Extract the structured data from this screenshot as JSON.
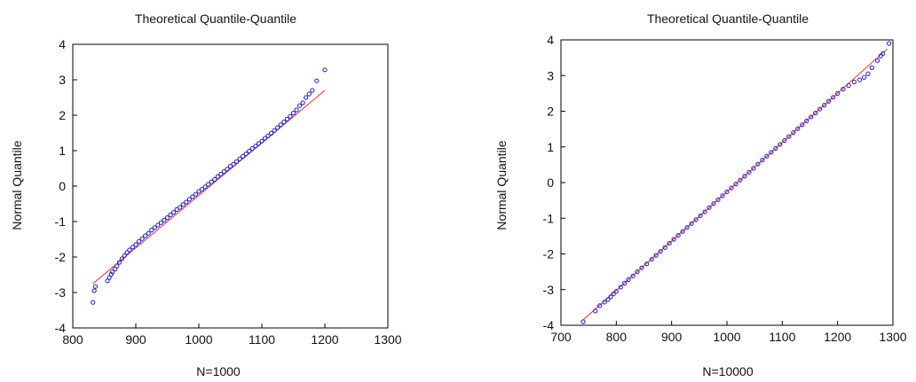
{
  "chart_data": [
    {
      "type": "scatter",
      "title": "Theoretical Quantile-Quantile",
      "xlabel": "N=1000",
      "ylabel": "Normal Quantile",
      "xlim": [
        800,
        1300
      ],
      "ylim": [
        -4,
        4
      ],
      "x_ticks": [
        800,
        900,
        1000,
        1100,
        1200,
        1300
      ],
      "y_ticks": [
        -4,
        -3,
        -2,
        -1,
        0,
        1,
        2,
        3,
        4
      ],
      "grid": false,
      "colors": {
        "points": "#1a1acc",
        "reference_line": "#ff2a2a",
        "axes": "#000000"
      },
      "reference_line": {
        "x": [
          832,
          1200
        ],
        "y": [
          -2.75,
          2.7
        ]
      },
      "series": [
        {
          "x": [
            832,
            834,
            836,
            855,
            858,
            861,
            863,
            867,
            870,
            874,
            878,
            882,
            886,
            890,
            895,
            900,
            905,
            910,
            915,
            920,
            925,
            930,
            935,
            940,
            945,
            950,
            955,
            960,
            965,
            970,
            975,
            980,
            985,
            990,
            995,
            1000,
            1005,
            1010,
            1015,
            1020,
            1025,
            1030,
            1035,
            1040,
            1045,
            1050,
            1055,
            1060,
            1065,
            1070,
            1075,
            1080,
            1085,
            1090,
            1095,
            1100,
            1105,
            1110,
            1115,
            1120,
            1125,
            1130,
            1135,
            1140,
            1145,
            1150,
            1155,
            1160,
            1165,
            1170,
            1175,
            1180,
            1187,
            1200
          ],
          "y": [
            -3.28,
            -2.95,
            -2.83,
            -2.67,
            -2.58,
            -2.49,
            -2.42,
            -2.34,
            -2.25,
            -2.15,
            -2.05,
            -1.96,
            -1.87,
            -1.8,
            -1.72,
            -1.65,
            -1.56,
            -1.48,
            -1.4,
            -1.33,
            -1.24,
            -1.17,
            -1.1,
            -1.03,
            -0.96,
            -0.89,
            -0.81,
            -0.74,
            -0.66,
            -0.6,
            -0.52,
            -0.45,
            -0.37,
            -0.3,
            -0.23,
            -0.15,
            -0.09,
            -0.02,
            0.05,
            0.12,
            0.19,
            0.27,
            0.34,
            0.41,
            0.48,
            0.56,
            0.62,
            0.69,
            0.77,
            0.84,
            0.91,
            0.99,
            1.06,
            1.13,
            1.2,
            1.27,
            1.35,
            1.42,
            1.49,
            1.57,
            1.65,
            1.73,
            1.81,
            1.89,
            1.97,
            2.06,
            2.15,
            2.27,
            2.35,
            2.5,
            2.6,
            2.7,
            2.97,
            3.28
          ]
        }
      ]
    },
    {
      "type": "scatter",
      "title": "Theoretical Quantile-Quantile",
      "xlabel": "N=10000",
      "ylabel": "Normal Quantile",
      "xlim": [
        700,
        1300
      ],
      "ylim": [
        -4,
        4
      ],
      "x_ticks": [
        700,
        800,
        900,
        1000,
        1100,
        1200,
        1300
      ],
      "y_ticks": [
        -4,
        -3,
        -2,
        -1,
        0,
        1,
        2,
        3,
        4
      ],
      "grid": false,
      "colors": {
        "points": "#1a1acc",
        "reference_line": "#ff2a2a",
        "axes": "#000000"
      },
      "reference_line": {
        "x": [
          740,
          1290
        ],
        "y": [
          -3.85,
          3.75
        ]
      },
      "series": [
        {
          "x": [
            740,
            762,
            770,
            779,
            785,
            790,
            795,
            800,
            808,
            815,
            822,
            830,
            838,
            846,
            855,
            864,
            872,
            880,
            888,
            896,
            904,
            912,
            920,
            928,
            936,
            944,
            952,
            960,
            968,
            976,
            984,
            992,
            1000,
            1008,
            1016,
            1024,
            1032,
            1040,
            1048,
            1056,
            1064,
            1072,
            1080,
            1088,
            1096,
            1104,
            1112,
            1120,
            1128,
            1136,
            1144,
            1152,
            1160,
            1168,
            1176,
            1184,
            1192,
            1200,
            1210,
            1220,
            1230,
            1240,
            1248,
            1255,
            1262,
            1272,
            1278,
            1282,
            1293
          ],
          "y": [
            -3.9,
            -3.6,
            -3.45,
            -3.35,
            -3.28,
            -3.2,
            -3.12,
            -3.05,
            -2.93,
            -2.82,
            -2.72,
            -2.62,
            -2.5,
            -2.39,
            -2.28,
            -2.15,
            -2.04,
            -1.93,
            -1.82,
            -1.7,
            -1.59,
            -1.48,
            -1.37,
            -1.26,
            -1.15,
            -1.04,
            -0.93,
            -0.82,
            -0.7,
            -0.59,
            -0.48,
            -0.37,
            -0.26,
            -0.15,
            -0.04,
            0.07,
            0.18,
            0.29,
            0.4,
            0.52,
            0.63,
            0.74,
            0.85,
            0.96,
            1.07,
            1.18,
            1.29,
            1.4,
            1.51,
            1.62,
            1.73,
            1.84,
            1.95,
            2.06,
            2.17,
            2.28,
            2.39,
            2.5,
            2.62,
            2.72,
            2.82,
            2.88,
            2.95,
            3.05,
            3.22,
            3.42,
            3.55,
            3.62,
            3.9
          ]
        }
      ]
    }
  ]
}
